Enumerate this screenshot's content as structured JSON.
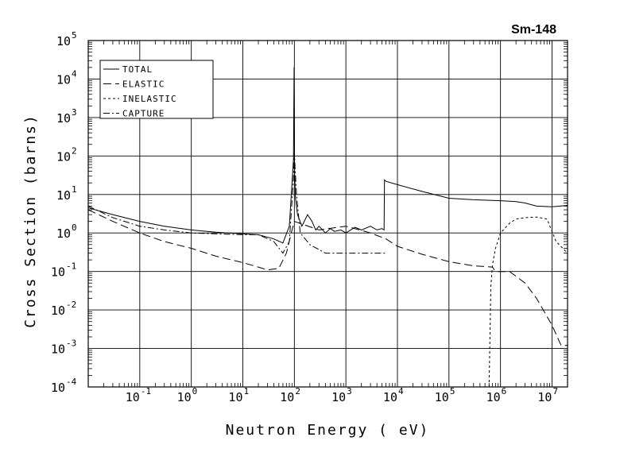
{
  "chart_data": {
    "type": "line",
    "title": "Sm-148",
    "xlabel": "Neutron Energy ( eV)",
    "ylabel": "Cross Section (barns)",
    "x_scale": "log",
    "y_scale": "log",
    "xlim": [
      0.01,
      20000000
    ],
    "ylim": [
      0.0001,
      100000
    ],
    "grid": true,
    "legend_position": "top-left",
    "x_ticks": [
      {
        "label": "10",
        "exp": "-1",
        "value": 0.1
      },
      {
        "label": "10",
        "exp": "0",
        "value": 1
      },
      {
        "label": "10",
        "exp": "1",
        "value": 10
      },
      {
        "label": "10",
        "exp": "2",
        "value": 100
      },
      {
        "label": "10",
        "exp": "3",
        "value": 1000
      },
      {
        "label": "10",
        "exp": "4",
        "value": 10000
      },
      {
        "label": "10",
        "exp": "5",
        "value": 100000
      },
      {
        "label": "10",
        "exp": "6",
        "value": 1000000
      },
      {
        "label": "10",
        "exp": "7",
        "value": 10000000
      }
    ],
    "y_ticks": [
      {
        "label": "10",
        "exp": "-4",
        "value": 0.0001
      },
      {
        "label": "10",
        "exp": "-3",
        "value": 0.001
      },
      {
        "label": "10",
        "exp": "-2",
        "value": 0.01
      },
      {
        "label": "10",
        "exp": "-1",
        "value": 0.1
      },
      {
        "label": "10",
        "exp": "0",
        "value": 1
      },
      {
        "label": "10",
        "exp": "1",
        "value": 10
      },
      {
        "label": "10",
        "exp": "2",
        "value": 100
      },
      {
        "label": "10",
        "exp": "3",
        "value": 1000
      },
      {
        "label": "10",
        "exp": "4",
        "value": 10000
      },
      {
        "label": "10",
        "exp": "5",
        "value": 100000
      }
    ],
    "series": [
      {
        "name": "TOTAL",
        "dash": "solid",
        "x": [
          0.01,
          0.03,
          0.1,
          0.3,
          1,
          3,
          10,
          20,
          40,
          60,
          80,
          96,
          99,
          101,
          105,
          115,
          140,
          180,
          220,
          260,
          300,
          400,
          500,
          600,
          800,
          1000,
          1500,
          2000,
          3000,
          4000,
          5000,
          5500,
          5600,
          6000,
          10000,
          30000,
          100000,
          300000,
          1000000,
          2000000,
          3000000,
          5000000,
          10000000,
          20000000
        ],
        "y": [
          4.5,
          3.0,
          2.0,
          1.5,
          1.2,
          1.05,
          0.95,
          0.9,
          0.7,
          0.55,
          1.5,
          80,
          20000,
          40,
          8,
          3,
          1.5,
          3,
          2,
          1.2,
          1.5,
          1.0,
          1.3,
          1.1,
          1.2,
          1.0,
          1.4,
          1.2,
          1.5,
          1.2,
          1.3,
          1.2,
          24,
          22,
          18,
          12,
          8,
          7.3,
          6.9,
          6.5,
          6.0,
          5.0,
          4.8,
          5.2
        ]
      },
      {
        "name": "ELASTIC",
        "dash": "long-dash",
        "x": [
          0.01,
          0.03,
          0.1,
          0.3,
          1,
          3,
          10,
          20,
          30,
          50,
          70,
          90,
          100,
          300,
          1000,
          3000,
          6000,
          10000,
          30000,
          100000,
          300000,
          700000,
          800000,
          1500000,
          3000000,
          5000000,
          10000000,
          15000000,
          20000000
        ],
        "y": [
          4.0,
          2.0,
          1.0,
          0.6,
          0.4,
          0.25,
          0.17,
          0.13,
          0.11,
          0.12,
          0.3,
          1.2,
          2,
          1.2,
          1.5,
          1.0,
          0.7,
          0.45,
          0.28,
          0.18,
          0.14,
          0.13,
          0.1,
          0.1,
          0.05,
          0.02,
          0.004,
          0.0012,
          0.0012
        ]
      },
      {
        "name": "INELASTIC",
        "dash": "short-dash",
        "x": [
          600000,
          650000,
          700000,
          800000,
          1000000,
          1500000,
          2000000,
          3000000,
          5000000,
          8000000,
          12000000,
          20000000
        ],
        "y": [
          0.0001,
          0.04,
          0.15,
          0.4,
          1.0,
          1.8,
          2.3,
          2.5,
          2.6,
          2.3,
          0.6,
          0.3
        ]
      },
      {
        "name": "CAPTURE",
        "dash": "dash-dot",
        "x": [
          0.01,
          0.03,
          0.1,
          0.3,
          1,
          3,
          10,
          20,
          40,
          60,
          80,
          95,
          100,
          110,
          130,
          200,
          400,
          1000,
          3000,
          6000
        ],
        "y": [
          5.0,
          2.5,
          1.5,
          1.2,
          1.0,
          0.95,
          0.9,
          0.9,
          0.6,
          0.3,
          0.6,
          20,
          120,
          10,
          1.0,
          0.5,
          0.3,
          0.3,
          0.3,
          0.3
        ]
      }
    ]
  }
}
